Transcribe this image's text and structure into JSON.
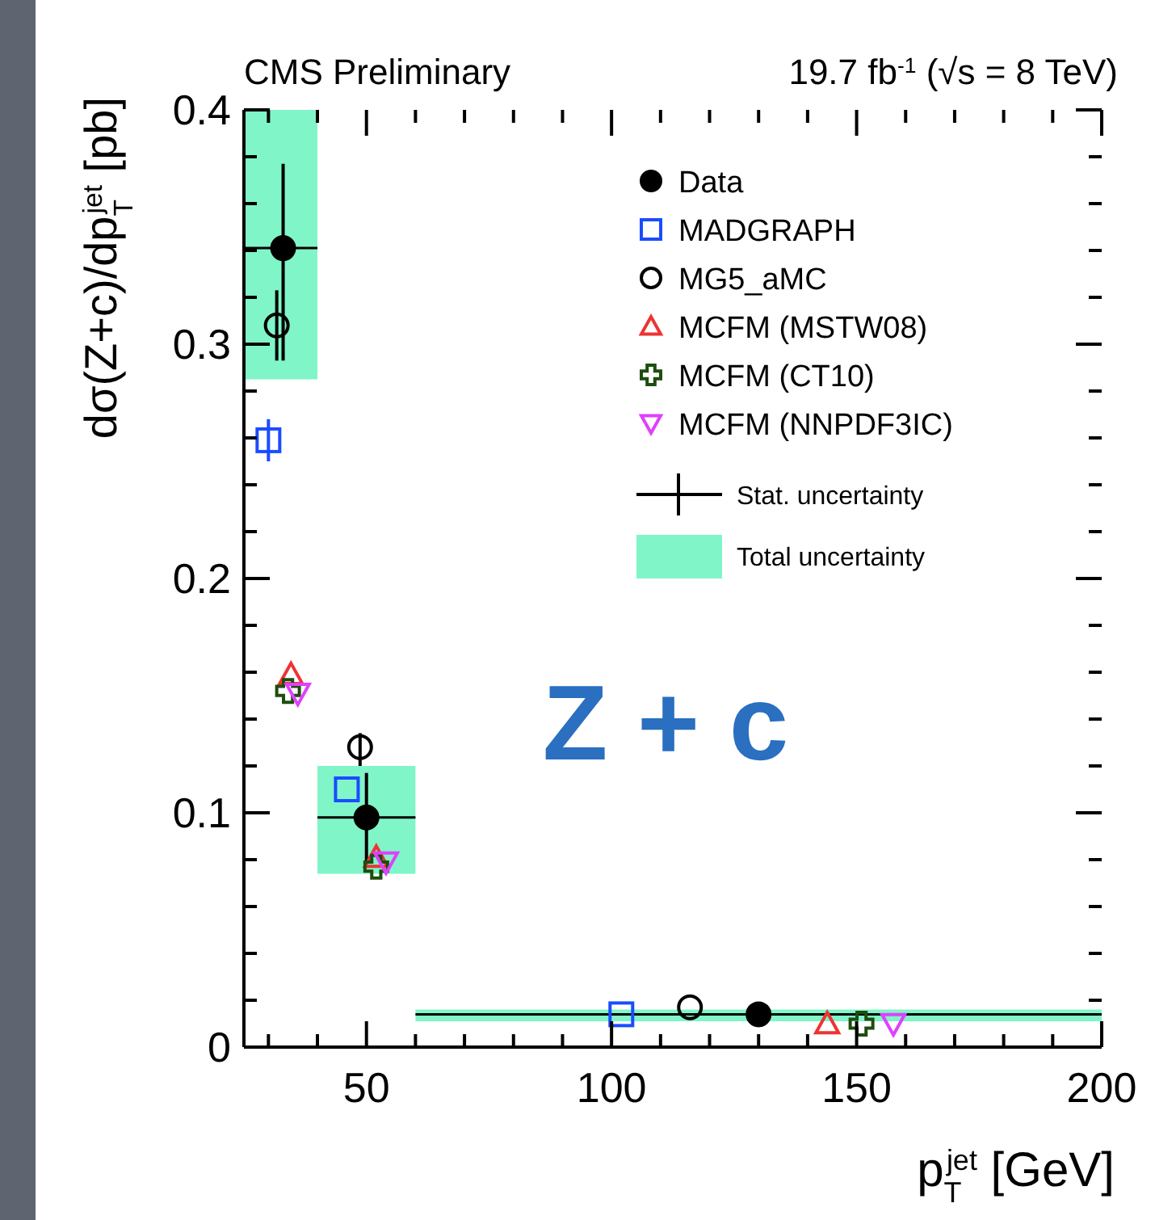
{
  "chart_data": {
    "type": "scatter",
    "title": "CMS Preliminary",
    "subtitle": "19.7 fb$^{-1}$ (√s = 8 TeV)",
    "xlabel": "p$_{T}$$^{jet}$ [GeV]",
    "ylabel": "dσ(Z+c)/dp$_{T}$$^{jet}$ [pb]",
    "annotations": [
      "Z + c",
      "Stat. uncertainty"
    ],
    "xlim": [
      25,
      200
    ],
    "ylim": [
      0,
      0.4
    ],
    "xticks": [
      {
        "value": 30,
        "label": null
      },
      {
        "value": 40,
        "label": null
      },
      50,
      {
        "value": 60,
        "label": null
      },
      {
        "value": 70,
        "label": null
      },
      {
        "value": 80,
        "label": null
      },
      {
        "value": 90,
        "label": null
      },
      100,
      {
        "value": 110,
        "label": null
      },
      {
        "value": 120,
        "label": null
      },
      {
        "value": 130,
        "label": null
      },
      {
        "value": 140,
        "label": null
      },
      150,
      {
        "value": 160,
        "label": null
      },
      {
        "value": 170,
        "label": null
      },
      {
        "value": 180,
        "label": null
      },
      {
        "value": 190,
        "label": null
      },
      200
    ],
    "yticks": [
      0,
      {
        "value": 0.02,
        "label": null
      },
      {
        "value": 0.04,
        "label": null
      },
      {
        "value": 0.06,
        "label": null
      },
      {
        "value": 0.08,
        "label": null
      },
      0.1,
      {
        "value": 0.12,
        "label": null
      },
      {
        "value": 0.14,
        "label": null
      },
      {
        "value": 0.16,
        "label": null
      },
      {
        "value": 0.18,
        "label": null
      },
      0.2,
      {
        "value": 0.22,
        "label": null
      },
      {
        "value": 0.24,
        "label": null
      },
      {
        "value": 0.26,
        "label": null
      },
      {
        "value": 0.28,
        "label": null
      },
      0.3,
      {
        "value": 0.32,
        "label": null
      },
      {
        "value": 0.34,
        "label": null
      },
      {
        "value": 0.36,
        "label": null
      },
      {
        "value": 0.38,
        "label": null
      },
      0.4
    ],
    "legend": "top right",
    "series": [
      {
        "name": "Total uncertainty",
        "type": "histogram",
        "color": "#80f5c8",
        "bins": [
          25,
          40,
          60,
          200
        ],
        "base": [
          0.285,
          0.074,
          0.011
        ],
        "values": [
          0.115,
          0.046,
          0.005
        ]
      },
      {
        "name": "Data",
        "marker": "circle",
        "color": "#000000",
        "x": [
          33,
          50,
          130
        ],
        "values": [
          0.341,
          0.098,
          0.014
        ],
        "errors": [
          [
            0.293,
            0.377
          ],
          [
            0.079,
            0.117
          ],
          null
        ],
        "xerrors": [
          [
            25,
            40
          ],
          [
            40,
            60
          ],
          [
            60,
            200
          ]
        ]
      },
      {
        "name": "MADGRAPH",
        "marker": "square",
        "color": "#1a4cff",
        "x": [
          30,
          46,
          102
        ],
        "values": [
          0.259,
          0.11,
          0.014
        ],
        "errors": [
          [
            0.25,
            0.268
          ],
          null,
          null
        ]
      },
      {
        "name": "MG5_aMC",
        "marker": "circle",
        "color": "#000000",
        "x": [
          31.7,
          48.7,
          116
        ],
        "values": [
          0.308,
          0.128,
          0.017
        ],
        "errors": [
          [
            0.293,
            0.323
          ],
          [
            0.12,
            0.134
          ],
          null
        ]
      },
      {
        "name": "MCFM (MSTW08)",
        "marker": "triangle",
        "color": "#ee3333",
        "x": [
          34.6,
          52,
          144
        ],
        "values": [
          0.159,
          0.081,
          0.01
        ]
      },
      {
        "name": "MCFM (CT10)",
        "marker": "cross",
        "color": "#1e4d0e",
        "x": [
          34,
          52,
          151
        ],
        "values": [
          0.152,
          0.077,
          0.01
        ]
      },
      {
        "name": "MCFM (NNPDF3IC)",
        "marker": "triangle-down",
        "color": "#e040ff",
        "x": [
          36,
          54,
          157.5
        ],
        "values": [
          0.151,
          0.079,
          0.01
        ]
      }
    ]
  }
}
